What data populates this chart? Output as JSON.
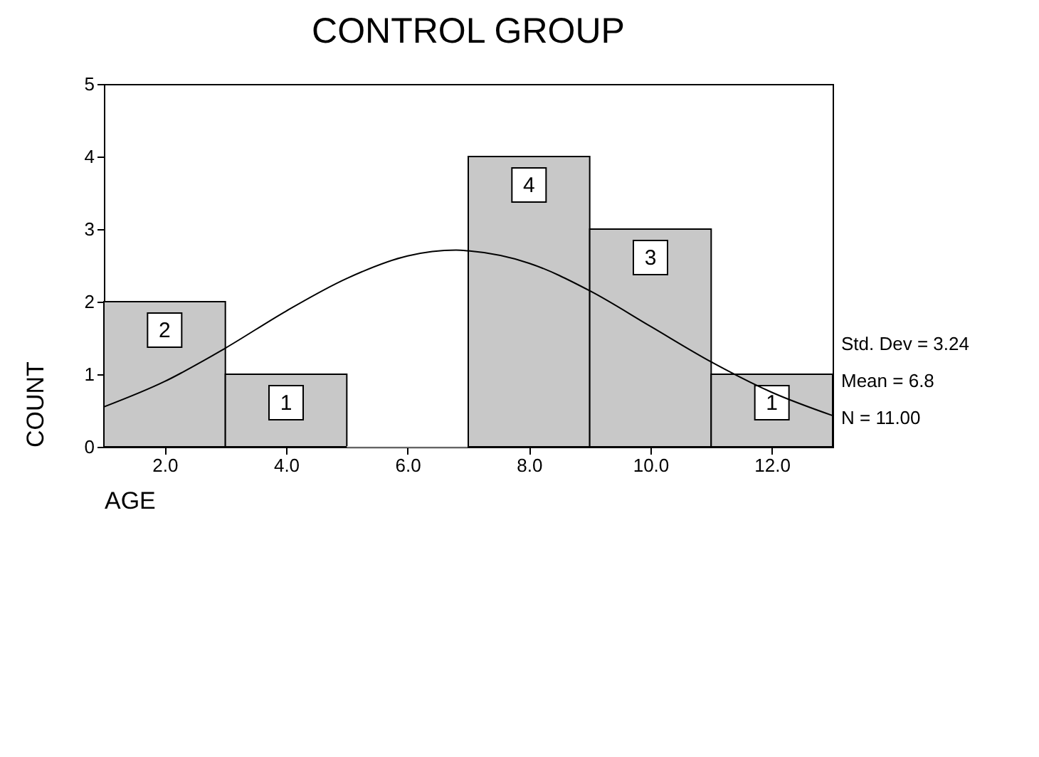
{
  "chart_data": {
    "type": "histogram",
    "title": "CONTROL GROUP",
    "xlabel": "AGE",
    "ylabel": "COUNT",
    "bins": [
      1,
      3,
      5,
      7,
      9,
      11,
      13
    ],
    "series": [
      {
        "type": "histogram",
        "color": "#c8c8c8",
        "values": [
          2,
          1,
          0,
          4,
          3,
          1
        ],
        "value_labels": [
          "2",
          "1",
          null,
          "4",
          "3",
          "1"
        ]
      },
      {
        "type": "line",
        "color": "#000000",
        "x": [
          1,
          2,
          3,
          4,
          5,
          6,
          6.8,
          7,
          8,
          9,
          10,
          11,
          12,
          13
        ],
        "values": [
          0.55,
          0.9,
          1.36,
          1.87,
          2.32,
          2.63,
          2.71,
          2.7,
          2.53,
          2.15,
          1.66,
          1.17,
          0.75,
          0.43
        ]
      }
    ],
    "xlim": [
      1,
      13
    ],
    "ylim": [
      0,
      5
    ],
    "xticks": [
      {
        "value": 2,
        "label": "2.0"
      },
      {
        "value": 4,
        "label": "4.0"
      },
      {
        "value": 6,
        "label": "6.0"
      },
      {
        "value": 8,
        "label": "8.0"
      },
      {
        "value": 10,
        "label": "10.0"
      },
      {
        "value": 12,
        "label": "12.0"
      }
    ],
    "yticks": [
      0,
      1,
      2,
      3,
      4,
      5
    ],
    "grid": false,
    "annotations": [
      "Std. Dev = 3.24",
      "Mean = 6.8",
      "N = 11.00"
    ]
  }
}
